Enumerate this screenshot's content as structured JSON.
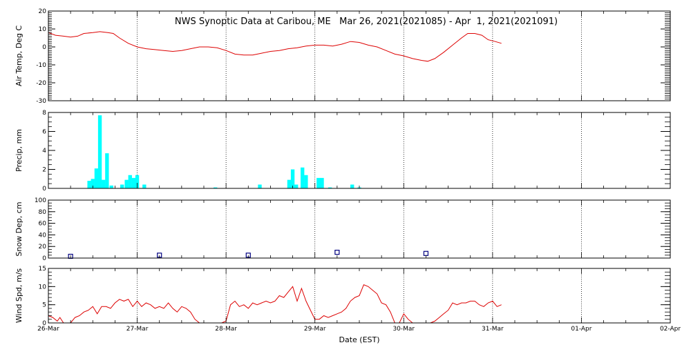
{
  "chart_data": {
    "type": "multi-panel time series",
    "title": "NWS Synoptic Data at Caribou, ME   Mar 26, 2021(2021085) - Apr  1, 2021(2021091)",
    "xlabel": "Date (EST)",
    "x_ticks": [
      "26-Mar",
      "27-Mar",
      "28-Mar",
      "29-Mar",
      "30-Mar",
      "31-Mar",
      "01-Apr",
      "02-Apr"
    ],
    "x_range_days": [
      0,
      7
    ],
    "panels": [
      {
        "id": "air_temp",
        "type": "line",
        "ylabel": "Air Temp, Deg C",
        "ylim": [
          -30,
          20
        ],
        "yticks": [
          -30,
          -20,
          -10,
          0,
          10,
          20
        ],
        "color": "#dd0000",
        "points": [
          [
            0.0,
            8.0
          ],
          [
            0.08,
            6.5
          ],
          [
            0.17,
            6.0
          ],
          [
            0.25,
            5.5
          ],
          [
            0.33,
            6.0
          ],
          [
            0.4,
            7.5
          ],
          [
            0.5,
            8.0
          ],
          [
            0.58,
            8.5
          ],
          [
            0.67,
            8.0
          ],
          [
            0.73,
            7.5
          ],
          [
            0.8,
            5.0
          ],
          [
            0.9,
            2.0
          ],
          [
            1.0,
            0.0
          ],
          [
            1.1,
            -1.0
          ],
          [
            1.2,
            -1.5
          ],
          [
            1.3,
            -2.0
          ],
          [
            1.4,
            -2.5
          ],
          [
            1.5,
            -2.0
          ],
          [
            1.6,
            -1.0
          ],
          [
            1.7,
            0.0
          ],
          [
            1.8,
            0.0
          ],
          [
            1.9,
            -0.5
          ],
          [
            2.0,
            -2.0
          ],
          [
            2.1,
            -4.0
          ],
          [
            2.2,
            -4.5
          ],
          [
            2.3,
            -4.5
          ],
          [
            2.4,
            -3.5
          ],
          [
            2.5,
            -2.5
          ],
          [
            2.6,
            -2.0
          ],
          [
            2.7,
            -1.0
          ],
          [
            2.8,
            -0.5
          ],
          [
            2.9,
            0.5
          ],
          [
            3.0,
            1.0
          ],
          [
            3.1,
            1.0
          ],
          [
            3.2,
            0.5
          ],
          [
            3.3,
            1.5
          ],
          [
            3.4,
            3.0
          ],
          [
            3.5,
            2.5
          ],
          [
            3.6,
            1.0
          ],
          [
            3.7,
            0.0
          ],
          [
            3.8,
            -2.0
          ],
          [
            3.9,
            -4.0
          ],
          [
            4.0,
            -5.0
          ],
          [
            4.1,
            -6.5
          ],
          [
            4.2,
            -7.5
          ],
          [
            4.27,
            -8.0
          ],
          [
            4.35,
            -6.5
          ],
          [
            4.45,
            -3.0
          ],
          [
            4.55,
            1.0
          ],
          [
            4.65,
            5.0
          ],
          [
            4.72,
            7.5
          ],
          [
            4.8,
            7.5
          ],
          [
            4.88,
            6.5
          ],
          [
            4.95,
            4.0
          ],
          [
            5.03,
            3.0
          ],
          [
            5.1,
            2.0
          ]
        ]
      },
      {
        "id": "precip",
        "type": "bar",
        "ylabel": "Precip, mm",
        "ylim": [
          0,
          8
        ],
        "yticks": [
          0,
          2,
          4,
          6,
          8
        ],
        "color": "#00ffff",
        "bar_width_days": 0.0417,
        "bars": [
          [
            0.46,
            0.8
          ],
          [
            0.5,
            1.0
          ],
          [
            0.54,
            2.1
          ],
          [
            0.58,
            7.7
          ],
          [
            0.62,
            0.9
          ],
          [
            0.66,
            3.7
          ],
          [
            0.71,
            0.3
          ],
          [
            0.83,
            0.4
          ],
          [
            0.88,
            0.9
          ],
          [
            0.92,
            1.4
          ],
          [
            0.96,
            1.1
          ],
          [
            1.0,
            1.4
          ],
          [
            1.08,
            0.4
          ],
          [
            1.88,
            0.1
          ],
          [
            2.38,
            0.4
          ],
          [
            2.71,
            0.9
          ],
          [
            2.75,
            2.0
          ],
          [
            2.79,
            0.4
          ],
          [
            2.86,
            2.2
          ],
          [
            2.9,
            1.4
          ],
          [
            3.04,
            1.1
          ],
          [
            3.08,
            1.1
          ],
          [
            3.17,
            0.1
          ],
          [
            3.42,
            0.4
          ],
          [
            3.5,
            0.1
          ]
        ]
      },
      {
        "id": "snow_depth",
        "type": "scatter",
        "ylabel": "Snow Dep, cm",
        "ylim": [
          0,
          100
        ],
        "yticks": [
          0,
          20,
          40,
          60,
          80,
          100
        ],
        "color": "#000080",
        "points": [
          [
            0.25,
            3
          ],
          [
            1.25,
            5
          ],
          [
            2.25,
            5
          ],
          [
            3.25,
            10
          ],
          [
            4.25,
            8
          ]
        ]
      },
      {
        "id": "wind_speed",
        "type": "line",
        "ylabel": "Wind Spd, m/s",
        "ylim": [
          0,
          15
        ],
        "yticks": [
          0,
          5,
          10,
          15
        ],
        "color": "#dd0000",
        "points": [
          [
            0.0,
            2.0
          ],
          [
            0.05,
            1.5
          ],
          [
            0.1,
            0.5
          ],
          [
            0.13,
            1.5
          ],
          [
            0.17,
            0.0
          ],
          [
            0.21,
            0.0
          ],
          [
            0.25,
            0.0
          ],
          [
            0.3,
            1.5
          ],
          [
            0.35,
            2.0
          ],
          [
            0.4,
            3.0
          ],
          [
            0.45,
            3.5
          ],
          [
            0.5,
            4.5
          ],
          [
            0.55,
            2.5
          ],
          [
            0.6,
            4.5
          ],
          [
            0.65,
            4.5
          ],
          [
            0.7,
            4.0
          ],
          [
            0.75,
            5.5
          ],
          [
            0.8,
            6.5
          ],
          [
            0.85,
            6.0
          ],
          [
            0.9,
            6.5
          ],
          [
            0.95,
            4.5
          ],
          [
            1.0,
            6.0
          ],
          [
            1.05,
            4.5
          ],
          [
            1.1,
            5.5
          ],
          [
            1.15,
            5.0
          ],
          [
            1.2,
            4.0
          ],
          [
            1.25,
            4.5
          ],
          [
            1.3,
            4.0
          ],
          [
            1.35,
            5.5
          ],
          [
            1.4,
            4.0
          ],
          [
            1.45,
            3.0
          ],
          [
            1.5,
            4.5
          ],
          [
            1.55,
            4.0
          ],
          [
            1.6,
            3.0
          ],
          [
            1.65,
            1.0
          ],
          [
            1.7,
            0.0
          ],
          [
            1.75,
            0.0
          ],
          [
            1.8,
            0.0
          ],
          [
            1.85,
            0.0
          ],
          [
            1.9,
            0.0
          ],
          [
            1.95,
            0.0
          ],
          [
            2.0,
            0.5
          ],
          [
            2.05,
            5.0
          ],
          [
            2.1,
            6.0
          ],
          [
            2.15,
            4.5
          ],
          [
            2.2,
            5.0
          ],
          [
            2.25,
            4.0
          ],
          [
            2.3,
            5.5
          ],
          [
            2.35,
            5.0
          ],
          [
            2.4,
            5.5
          ],
          [
            2.45,
            6.0
          ],
          [
            2.5,
            5.5
          ],
          [
            2.55,
            6.0
          ],
          [
            2.6,
            7.5
          ],
          [
            2.65,
            7.0
          ],
          [
            2.7,
            8.5
          ],
          [
            2.75,
            10.0
          ],
          [
            2.8,
            6.0
          ],
          [
            2.85,
            9.5
          ],
          [
            2.9,
            6.0
          ],
          [
            2.95,
            3.5
          ],
          [
            3.0,
            1.0
          ],
          [
            3.05,
            1.0
          ],
          [
            3.1,
            2.0
          ],
          [
            3.15,
            1.5
          ],
          [
            3.2,
            2.0
          ],
          [
            3.25,
            2.5
          ],
          [
            3.3,
            3.0
          ],
          [
            3.35,
            4.0
          ],
          [
            3.4,
            6.0
          ],
          [
            3.45,
            7.0
          ],
          [
            3.5,
            7.5
          ],
          [
            3.55,
            10.5
          ],
          [
            3.6,
            10.0
          ],
          [
            3.65,
            9.0
          ],
          [
            3.7,
            8.0
          ],
          [
            3.75,
            5.5
          ],
          [
            3.8,
            5.0
          ],
          [
            3.85,
            3.0
          ],
          [
            3.9,
            0.0
          ],
          [
            3.95,
            0.0
          ],
          [
            4.0,
            2.5
          ],
          [
            4.05,
            1.0
          ],
          [
            4.1,
            0.0
          ],
          [
            4.15,
            0.0
          ],
          [
            4.2,
            0.0
          ],
          [
            4.25,
            0.0
          ],
          [
            4.3,
            0.0
          ],
          [
            4.35,
            0.5
          ],
          [
            4.4,
            1.5
          ],
          [
            4.45,
            2.5
          ],
          [
            4.5,
            3.5
          ],
          [
            4.55,
            5.5
          ],
          [
            4.6,
            5.0
          ],
          [
            4.65,
            5.5
          ],
          [
            4.7,
            5.5
          ],
          [
            4.75,
            6.0
          ],
          [
            4.8,
            6.0
          ],
          [
            4.85,
            5.0
          ],
          [
            4.9,
            4.5
          ],
          [
            4.95,
            5.5
          ],
          [
            5.0,
            6.0
          ],
          [
            5.05,
            4.5
          ],
          [
            5.1,
            5.0
          ]
        ]
      }
    ]
  }
}
